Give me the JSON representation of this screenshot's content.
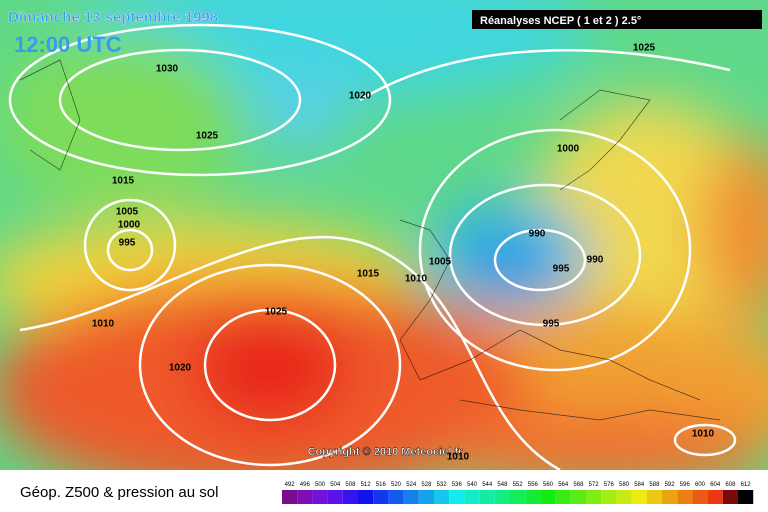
{
  "header": {
    "date": "Dimanche 13 septembre 1998",
    "time": "12:00 UTC",
    "source": "Réanalyses NCEP ( 1 et 2 ) 2.5°"
  },
  "isobar_labels": [
    "1030",
    "1025",
    "1015",
    "1005",
    "1000",
    "995",
    "1010",
    "1020",
    "1025",
    "1015",
    "1020",
    "1025",
    "1000",
    "990",
    "990",
    "995",
    "1005",
    "1010",
    "995",
    "1010",
    "1010"
  ],
  "copyright": "Copyright © 2010 Meteociel.fr",
  "legend": {
    "title": "Géop. Z500 & pression au sol",
    "scale": [
      492,
      496,
      500,
      504,
      508,
      512,
      516,
      520,
      524,
      528,
      532,
      536,
      540,
      544,
      548,
      552,
      556,
      560,
      564,
      568,
      572,
      576,
      580,
      584,
      588,
      592,
      596,
      600,
      604,
      608,
      612
    ]
  }
}
